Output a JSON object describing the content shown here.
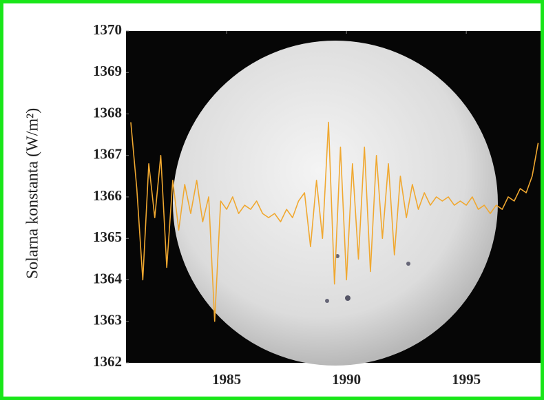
{
  "chart_data": {
    "type": "line",
    "y_label": "Solarna konstanta (W/m²)",
    "x": [
      1981.0,
      1981.25,
      1981.5,
      1981.75,
      1982.0,
      1982.25,
      1982.5,
      1982.75,
      1983.0,
      1983.25,
      1983.5,
      1983.75,
      1984.0,
      1984.25,
      1984.5,
      1984.75,
      1985.0,
      1985.25,
      1985.5,
      1985.75,
      1986.0,
      1986.25,
      1986.5,
      1986.75,
      1987.0,
      1987.25,
      1987.5,
      1987.75,
      1988.0,
      1988.25,
      1988.5,
      1988.75,
      1989.0,
      1989.25,
      1989.5,
      1989.75,
      1990.0,
      1990.25,
      1990.5,
      1990.75,
      1991.0,
      1991.25,
      1991.5,
      1991.75,
      1992.0,
      1992.25,
      1992.5,
      1992.75,
      1993.0,
      1993.25,
      1993.5,
      1993.75,
      1994.0,
      1994.25,
      1994.5,
      1994.75,
      1995.0,
      1995.25,
      1995.5,
      1995.75,
      1996.0,
      1996.25,
      1996.5,
      1996.75,
      1997.0,
      1997.25,
      1997.5,
      1997.75,
      1998.0
    ],
    "series": [
      {
        "color": "#f0a830",
        "values": [
          1367.8,
          1366.2,
          1364.0,
          1366.8,
          1365.5,
          1367.0,
          1364.3,
          1366.4,
          1365.2,
          1366.3,
          1365.6,
          1366.4,
          1365.4,
          1366.0,
          1363.0,
          1365.9,
          1365.7,
          1366.0,
          1365.6,
          1365.8,
          1365.7,
          1365.9,
          1365.6,
          1365.5,
          1365.6,
          1365.4,
          1365.7,
          1365.5,
          1365.9,
          1366.1,
          1364.8,
          1366.4,
          1365.0,
          1367.8,
          1363.9,
          1367.2,
          1364.0,
          1366.8,
          1364.5,
          1367.2,
          1364.2,
          1367.0,
          1365.0,
          1366.8,
          1364.6,
          1366.5,
          1365.5,
          1366.3,
          1365.7,
          1366.1,
          1365.8,
          1366.0,
          1365.9,
          1366.0,
          1365.8,
          1365.9,
          1365.8,
          1366.0,
          1365.7,
          1365.8,
          1365.6,
          1365.8,
          1365.7,
          1366.0,
          1365.9,
          1366.2,
          1366.1,
          1366.5,
          1367.3
        ]
      }
    ],
    "xlim": [
      1980.8,
      1998.1
    ],
    "ylim": [
      1362,
      1370
    ],
    "xticks": [
      1985,
      1990,
      1995
    ],
    "yticks": [
      1362,
      1363,
      1364,
      1365,
      1366,
      1367,
      1368,
      1369,
      1370
    ]
  }
}
